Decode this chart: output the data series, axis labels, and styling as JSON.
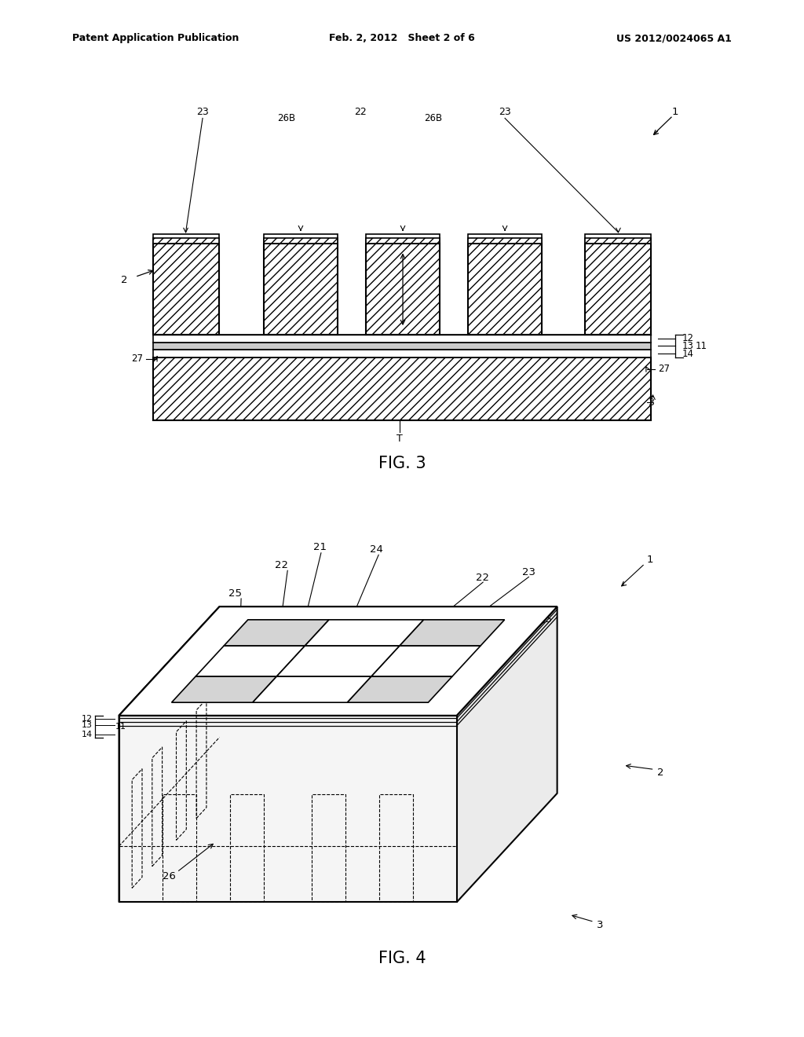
{
  "bg_color": "#ffffff",
  "line_color": "#000000",
  "header_left": "Patent Application Publication",
  "header_center": "Feb. 2, 2012   Sheet 2 of 6",
  "header_right": "US 2012/0024065 A1",
  "fig3_label": "FIG. 3",
  "fig4_label": "FIG. 4"
}
